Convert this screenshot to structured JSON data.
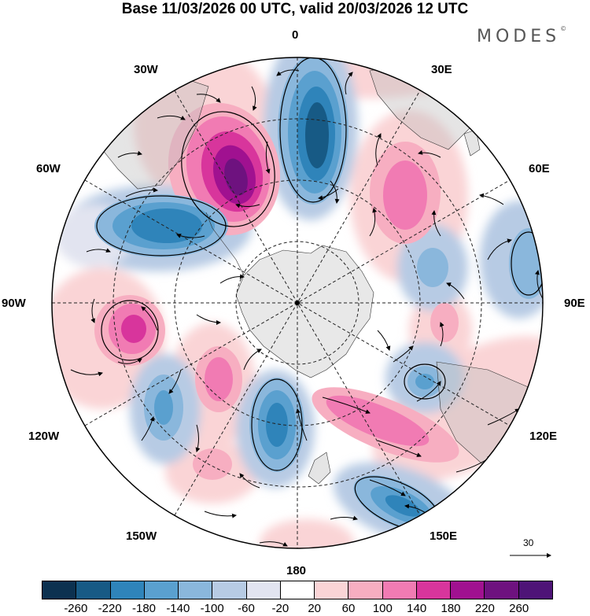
{
  "title": "Base 11/03/2026 00 UTC, valid 20/03/2026 12 UTC",
  "brand": "MODES",
  "brand_mark": "©",
  "longitude_labels": {
    "top": "0",
    "lon30e": "30E",
    "lon60e": "60E",
    "lon90e": "90E",
    "lon120e": "120E",
    "lon150e": "150E",
    "bottom": "180",
    "lon150w": "150W",
    "lon120w": "120W",
    "lon90w": "90W",
    "lon60w": "60W",
    "lon30w": "30W"
  },
  "wind_reference": {
    "label": "30"
  },
  "colorbar": {
    "colors": [
      "#0c3150",
      "#175a85",
      "#2f84ba",
      "#5aa0cf",
      "#8ab7dc",
      "#b7cbe4",
      "#e2e4f0",
      "#ffffff",
      "#fad4d6",
      "#f7aec1",
      "#f17bb3",
      "#d8359c",
      "#a01190",
      "#6e127f",
      "#4e1477"
    ],
    "labels": [
      "-260",
      "-220",
      "-180",
      "-140",
      "-100",
      "-60",
      "-20",
      "20",
      "60",
      "100",
      "140",
      "180",
      "220",
      "260"
    ]
  },
  "colors": {
    "land": "#d9d9d9",
    "antarctica": "#e6e6e6",
    "grid": "#222222"
  }
}
